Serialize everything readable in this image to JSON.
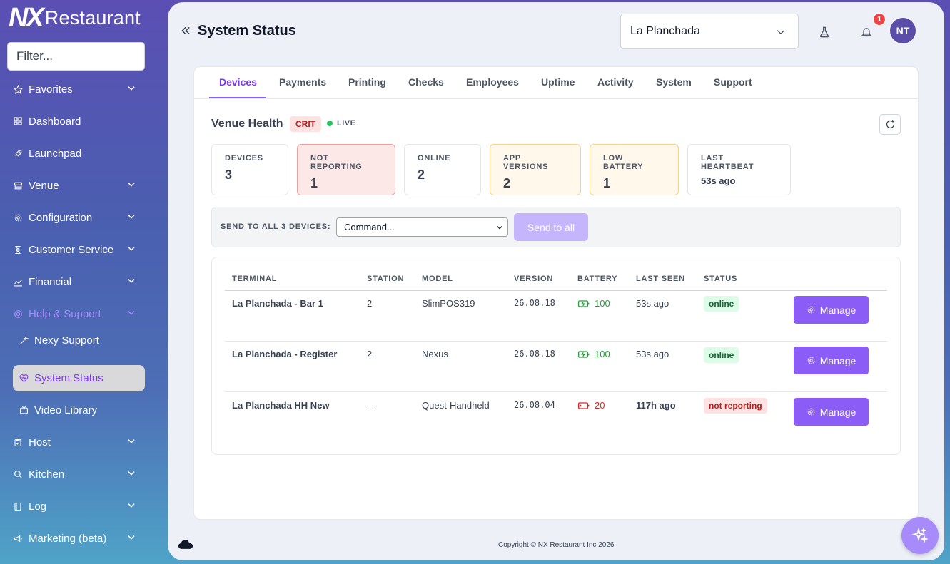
{
  "app": {
    "logo_mark": "NX",
    "logo_text": "Restaurant"
  },
  "sidebar": {
    "filter_placeholder": "Filter...",
    "items": [
      {
        "label": "Favorites",
        "icon": "star-icon",
        "expandable": true
      },
      {
        "label": "Dashboard",
        "icon": "grid-icon",
        "expandable": false
      },
      {
        "label": "Launchpad",
        "icon": "rocket-icon",
        "expandable": false
      },
      {
        "label": "Venue",
        "icon": "store-icon",
        "expandable": true
      },
      {
        "label": "Configuration",
        "icon": "gear-icon",
        "expandable": true
      },
      {
        "label": "Customer Service",
        "icon": "hourglass-icon",
        "expandable": true
      },
      {
        "label": "Financial",
        "icon": "chart-icon",
        "expandable": true
      },
      {
        "label": "Help & Support",
        "icon": "help-icon",
        "expandable": true
      },
      {
        "label": "Nexy Support",
        "icon": "sparkle-wand-icon",
        "expandable": false
      },
      {
        "label": "System Status",
        "icon": "heart-pulse-icon",
        "expandable": false
      },
      {
        "label": "Video Library",
        "icon": "video-icon",
        "expandable": false
      },
      {
        "label": "Host",
        "icon": "clipboard-icon",
        "expandable": true
      },
      {
        "label": "Kitchen",
        "icon": "kitchen-icon",
        "expandable": true
      },
      {
        "label": "Log",
        "icon": "book-icon",
        "expandable": true
      },
      {
        "label": "Marketing (beta)",
        "icon": "megaphone-icon",
        "expandable": true
      }
    ]
  },
  "header": {
    "title": "System Status",
    "venue": "La Planchada",
    "notification_count": "1",
    "avatar_initials": "NT"
  },
  "tabs": [
    "Devices",
    "Payments",
    "Printing",
    "Checks",
    "Employees",
    "Uptime",
    "Activity",
    "System",
    "Support"
  ],
  "health": {
    "title": "Venue Health",
    "severity": "CRIT",
    "live_label": "LIVE"
  },
  "stats": [
    {
      "label": "DEVICES",
      "value": "3"
    },
    {
      "label": "NOT REPORTING",
      "value": "1"
    },
    {
      "label": "ONLINE",
      "value": "2"
    },
    {
      "label": "APP VERSIONS",
      "value": "2"
    },
    {
      "label": "LOW BATTERY",
      "value": "1"
    },
    {
      "label": "LAST HEARTBEAT",
      "value": "53s ago"
    }
  ],
  "command_bar": {
    "label": "SEND TO ALL 3 DEVICES:",
    "select_value": "Command...",
    "send_label": "Send to all"
  },
  "table": {
    "columns": [
      "TERMINAL",
      "STATION",
      "MODEL",
      "VERSION",
      "BATTERY",
      "LAST SEEN",
      "STATUS"
    ],
    "rows": [
      {
        "terminal": "La Planchada - Bar 1",
        "station": "2",
        "model": "SlimPOS319",
        "version": "26.08.18",
        "battery": "100",
        "last_seen": "53s ago",
        "status": "online",
        "action": "Manage"
      },
      {
        "terminal": "La Planchada - Register",
        "station": "2",
        "model": "Nexus",
        "version": "26.08.18",
        "battery": "100",
        "last_seen": "53s ago",
        "status": "online",
        "action": "Manage"
      },
      {
        "terminal": "La Planchada HH New",
        "station": "—",
        "model": "Quest-Handheld",
        "version": "26.08.04",
        "battery": "20",
        "last_seen": "117h ago",
        "status": "not reporting",
        "action": "Manage"
      }
    ]
  },
  "footer": {
    "copyright": "Copyright © NX Restaurant Inc 2026"
  },
  "colors": {
    "accent": "#8b5cf6",
    "danger": "#dc2626",
    "success": "#22a03c"
  }
}
